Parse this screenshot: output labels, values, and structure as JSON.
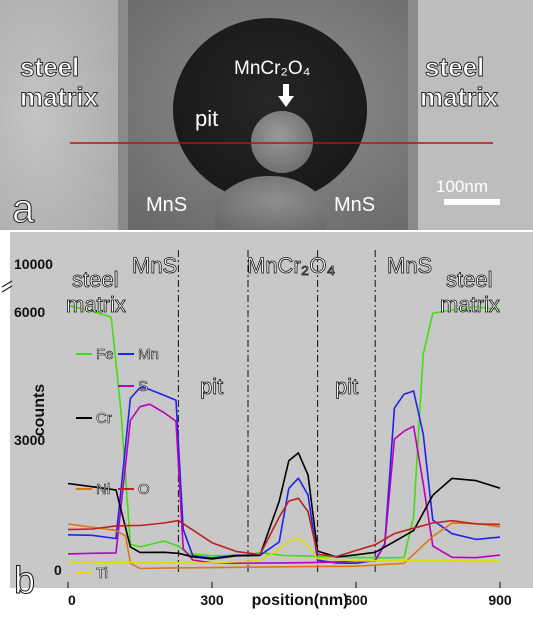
{
  "figure": {
    "panel_a": {
      "panel_label": "a",
      "labels": {
        "steel_left": "steel",
        "matrix_left": "matrix",
        "steel_right": "steel",
        "matrix_right": "matrix",
        "pit": "pit",
        "mncr2o4": "MnCr₂O₄",
        "mns_left": "MnS",
        "mns_right": "MnS"
      },
      "scalebar_label": "100nm"
    },
    "panel_b": {
      "panel_label": "b",
      "region_labels": {
        "mns_left": "MnS",
        "mncr2o4": "MnCr₂O₄",
        "mns_right": "MnS",
        "pit_left": "pit",
        "pit_right": "pit",
        "steel_left": "steel",
        "matrix_left": "matrix",
        "steel_right": "steel",
        "matrix_right": "matrix"
      }
    }
  },
  "chart_data": {
    "type": "line",
    "xlabel": "position(nm)",
    "ylabel": "counts",
    "xlim": [
      0,
      900
    ],
    "ylim": [
      0,
      12000
    ],
    "y_axis_break": true,
    "x_ticks": [
      "0",
      "300",
      "600",
      "900"
    ],
    "y_ticks": [
      "0",
      "3000",
      "6000",
      "10000"
    ],
    "x_tick_values": [
      0,
      300,
      600,
      900
    ],
    "y_tick_values": [
      0,
      3000,
      6000,
      10000
    ],
    "region_boundaries_nm": [
      230,
      375,
      520,
      640
    ],
    "series": [
      {
        "name": "Fe",
        "color": "#44dd11",
        "x": [
          0,
          50,
          90,
          110,
          130,
          150,
          200,
          230,
          250,
          300,
          350,
          375,
          400,
          450,
          500,
          520,
          550,
          600,
          640,
          660,
          700,
          720,
          740,
          760,
          800,
          850,
          900
        ],
        "y": [
          9800,
          9600,
          9400,
          6000,
          1000,
          900,
          1100,
          900,
          600,
          500,
          500,
          500,
          600,
          500,
          500,
          500,
          500,
          500,
          500,
          500,
          500,
          2000,
          8000,
          9500,
          9600,
          9700,
          9600
        ]
      },
      {
        "name": "Mn",
        "color": "#2222ee",
        "x": [
          0,
          50,
          100,
          130,
          150,
          160,
          200,
          225,
          240,
          260,
          300,
          350,
          400,
          440,
          460,
          480,
          500,
          520,
          560,
          600,
          640,
          660,
          680,
          700,
          720,
          740,
          760,
          800,
          850,
          900
        ],
        "y": [
          1300,
          1300,
          1200,
          6400,
          6800,
          6800,
          6500,
          6300,
          1500,
          500,
          400,
          500,
          500,
          1000,
          3000,
          3400,
          2800,
          400,
          300,
          300,
          400,
          1000,
          6000,
          6500,
          6600,
          5000,
          1800,
          1300,
          1100,
          1200
        ]
      },
      {
        "name": "S",
        "color": "#bb00bb",
        "x": [
          0,
          50,
          100,
          130,
          150,
          170,
          200,
          225,
          240,
          260,
          300,
          350,
          400,
          450,
          520,
          560,
          600,
          640,
          660,
          680,
          700,
          720,
          740,
          760,
          800,
          850,
          900
        ],
        "y": [
          600,
          600,
          600,
          5500,
          6000,
          6100,
          5800,
          5500,
          800,
          400,
          300,
          300,
          300,
          300,
          300,
          300,
          300,
          300,
          900,
          4800,
          5100,
          5300,
          3200,
          900,
          500,
          500,
          600
        ]
      },
      {
        "name": "Cr",
        "color": "#000000",
        "x": [
          0,
          50,
          100,
          130,
          150,
          200,
          230,
          260,
          300,
          350,
          400,
          440,
          460,
          480,
          500,
          520,
          560,
          600,
          640,
          680,
          720,
          760,
          800,
          850,
          900
        ],
        "y": [
          3200,
          3100,
          3000,
          900,
          700,
          700,
          650,
          500,
          400,
          500,
          500,
          2500,
          4000,
          4300,
          3500,
          700,
          500,
          600,
          700,
          1100,
          1500,
          2800,
          3400,
          3300,
          3000
        ]
      },
      {
        "name": "Ni",
        "color": "#dd7711",
        "x": [
          0,
          50,
          100,
          120,
          130,
          150,
          200,
          300,
          400,
          500,
          600,
          700,
          760,
          800,
          850,
          900
        ],
        "y": [
          1700,
          1600,
          1500,
          1300,
          300,
          100,
          100,
          100,
          100,
          100,
          100,
          200,
          1200,
          1700,
          1700,
          1600
        ]
      },
      {
        "name": "O",
        "color": "#bb2222",
        "x": [
          0,
          50,
          100,
          130,
          150,
          200,
          230,
          300,
          350,
          400,
          440,
          460,
          480,
          500,
          520,
          560,
          600,
          640,
          680,
          720,
          760,
          800,
          850,
          900
        ],
        "y": [
          1500,
          1500,
          1600,
          1600,
          1600,
          1700,
          1800,
          1000,
          700,
          600,
          2000,
          2600,
          2700,
          2200,
          600,
          500,
          700,
          900,
          1300,
          1500,
          1700,
          1800,
          1700,
          1700
        ]
      },
      {
        "name": "Ti",
        "color": "#dddd00",
        "x": [
          0,
          100,
          200,
          300,
          400,
          440,
          460,
          480,
          500,
          520,
          600,
          700,
          800,
          900
        ],
        "y": [
          300,
          300,
          300,
          300,
          400,
          800,
          1100,
          1200,
          900,
          400,
          300,
          300,
          300,
          300
        ]
      }
    ]
  }
}
